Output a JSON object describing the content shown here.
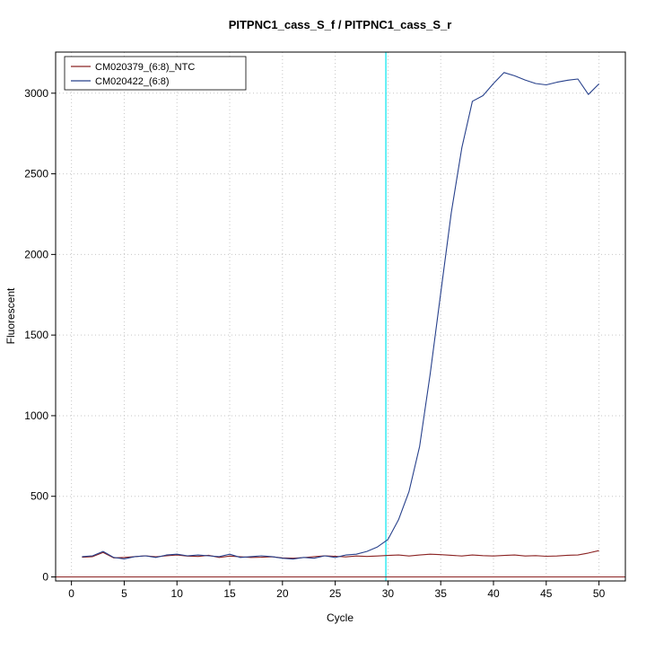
{
  "window": {
    "title": "PITPNC1_cass_S_f / PITPNC1_cass_S_r"
  },
  "chart_data": {
    "type": "line",
    "title": "PITPNC1_cass_S_f / PITPNC1_cass_S_r",
    "xlabel": "Cycle",
    "ylabel": "Fluorescent",
    "xlim": [
      -1.5,
      52.5
    ],
    "ylim": [
      -25,
      3255
    ],
    "xticks": [
      0,
      5,
      10,
      15,
      20,
      25,
      30,
      35,
      40,
      45,
      50
    ],
    "yticks": [
      0,
      500,
      1000,
      1500,
      2000,
      2500,
      3000
    ],
    "grid": true,
    "grid_color": "#c6c6c6",
    "legend_position": "top-left",
    "x": [
      1,
      2,
      3,
      4,
      5,
      6,
      7,
      8,
      9,
      10,
      11,
      12,
      13,
      14,
      15,
      16,
      17,
      18,
      19,
      20,
      21,
      22,
      23,
      24,
      25,
      26,
      27,
      28,
      29,
      30,
      31,
      32,
      33,
      34,
      35,
      36,
      37,
      38,
      39,
      40,
      41,
      42,
      43,
      44,
      45,
      46,
      47,
      48,
      49,
      50
    ],
    "series": [
      {
        "name": "CM020379_(6:8)_NTC",
        "color": "#8B2323",
        "values": [
          122,
          126,
          152,
          118,
          121,
          126,
          131,
          125,
          131,
          136,
          129,
          127,
          134,
          121,
          129,
          125,
          121,
          122,
          125,
          118,
          116,
          120,
          126,
          131,
          128,
          124,
          130,
          127,
          130,
          133,
          136,
          130,
          136,
          141,
          138,
          134,
          130,
          136,
          132,
          130,
          133,
          136,
          130,
          132,
          128,
          130,
          134,
          136,
          148,
          163
        ]
      },
      {
        "name": "CM020422_(6:8)",
        "color": "#27408B",
        "values": [
          126,
          131,
          158,
          121,
          112,
          126,
          131,
          121,
          136,
          141,
          131,
          136,
          131,
          126,
          141,
          121,
          126,
          131,
          126,
          116,
          111,
          121,
          116,
          131,
          121,
          136,
          141,
          158,
          186,
          232,
          355,
          530,
          810,
          1260,
          1760,
          2260,
          2660,
          2950,
          2985,
          3060,
          3128,
          3108,
          3082,
          3060,
          3052,
          3068,
          3080,
          3088,
          2992,
          3058
        ]
      }
    ],
    "threshold_cycle_line": {
      "x": 29.8,
      "color": "#00E5EE"
    },
    "baseline": {
      "y": 0,
      "color": "#8B2323"
    }
  }
}
